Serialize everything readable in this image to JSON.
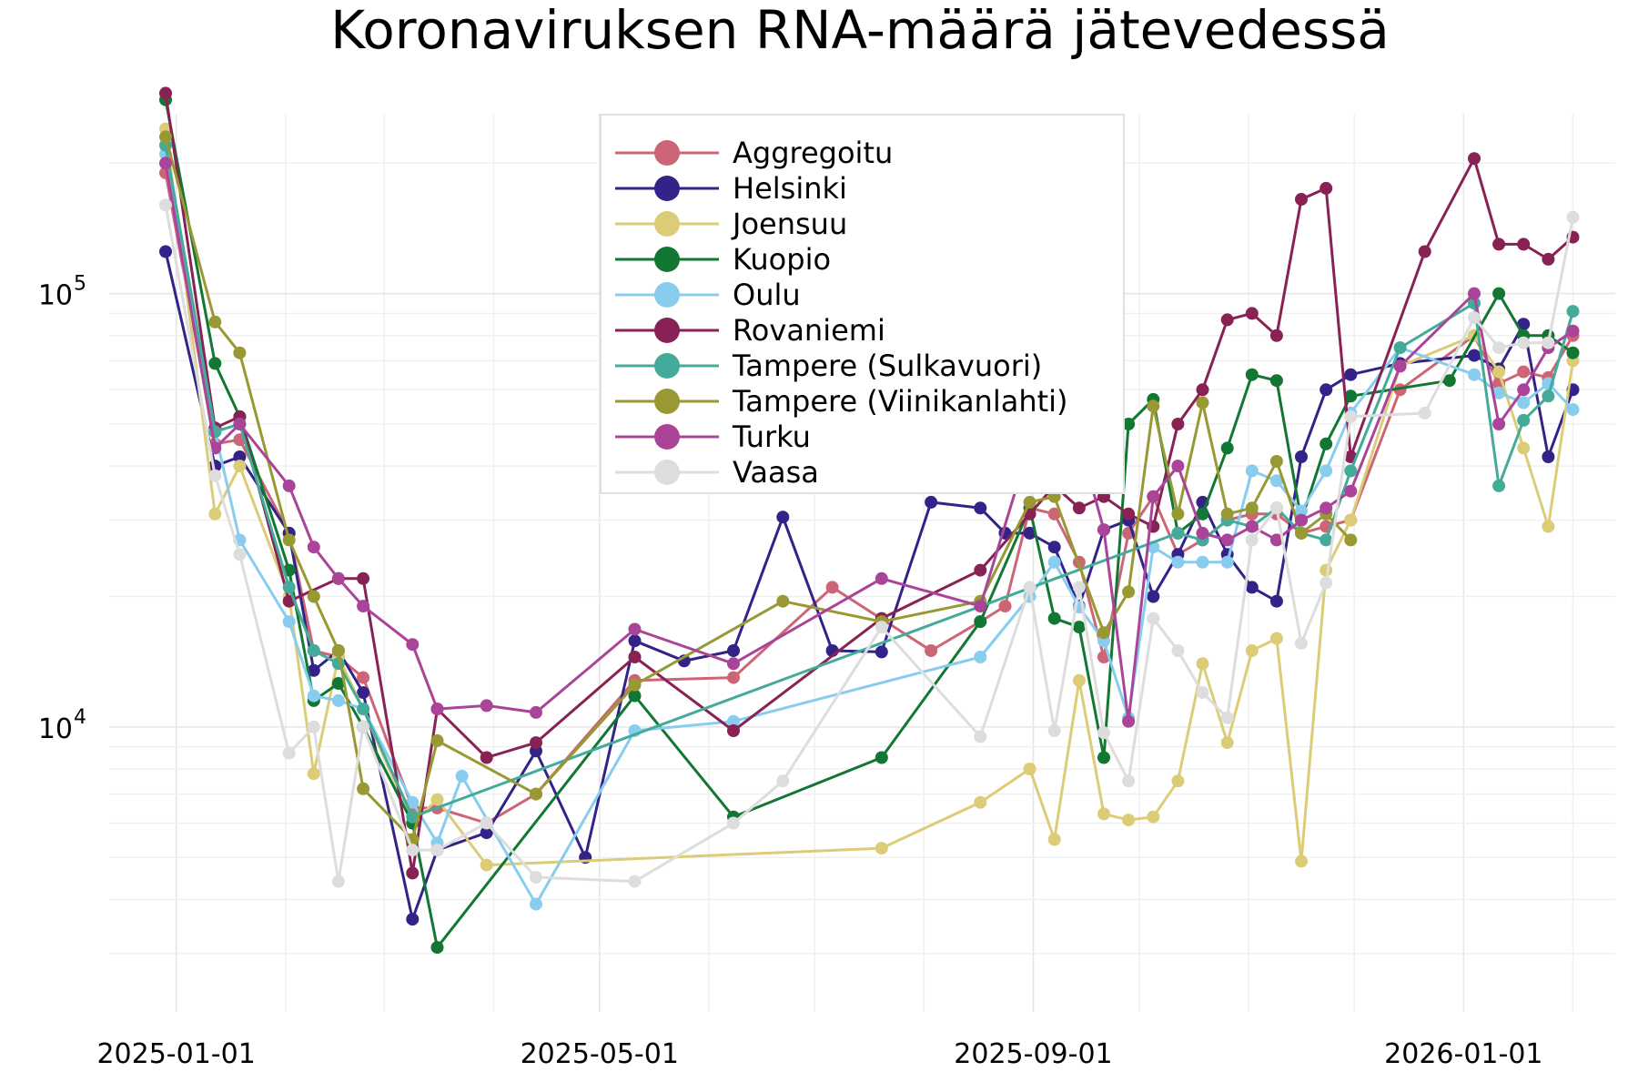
{
  "chart_data": {
    "type": "line",
    "title": "Koronaviruksen RNA-määrä jätevedessä",
    "xlabel": "",
    "ylabel": "",
    "y_scale": "log",
    "xlim": [
      "2024-12-13",
      "2026-02-13"
    ],
    "ylim": [
      2200,
      260000
    ],
    "grid": true,
    "legend_position": "top-center",
    "x_ticks": [
      {
        "date": "2025-01-01",
        "label": "2025-01-01"
      },
      {
        "date": "2025-05-01",
        "label": "2025-05-01"
      },
      {
        "date": "2025-09-01",
        "label": "2025-09-01"
      },
      {
        "date": "2026-01-01",
        "label": "2026-01-01"
      }
    ],
    "y_ticks": [
      {
        "value": 10000,
        "base": "10",
        "exp": "4"
      },
      {
        "value": 100000,
        "base": "10",
        "exp": "5"
      }
    ],
    "series": [
      {
        "name": "Aggregoitu",
        "color": "#cc6677",
        "x": [
          "2024-12-29",
          "2025-01-12",
          "2025-01-19",
          "2025-02-02",
          "2025-02-09",
          "2025-02-16",
          "2025-02-23",
          "2025-03-09",
          "2025-03-16",
          "2025-03-30",
          "2025-04-13",
          "2025-05-11",
          "2025-06-08",
          "2025-07-06",
          "2025-08-03",
          "2025-08-17",
          "2025-08-24",
          "2025-08-31",
          "2025-09-07",
          "2025-09-14",
          "2025-09-21",
          "2025-09-28",
          "2025-10-05",
          "2025-10-12",
          "2025-10-19",
          "2025-10-26",
          "2025-11-02",
          "2025-11-09",
          "2025-11-16",
          "2025-11-23",
          "2025-11-30",
          "2025-12-14",
          "2026-01-04",
          "2026-01-11",
          "2026-01-18",
          "2026-01-25",
          "2026-02-01"
        ],
        "y": [
          190000,
          45000,
          46000,
          28000,
          15000,
          14500,
          13000,
          6500,
          6500,
          6000,
          7000,
          12800,
          13000,
          21000,
          15000,
          17500,
          19000,
          32000,
          31000,
          24000,
          14500,
          28000,
          34000,
          25000,
          27000,
          30000,
          31000,
          31000,
          28000,
          29000,
          30000,
          60000,
          80000,
          62000,
          66000,
          64000,
          80000
        ]
      },
      {
        "name": "Helsinki",
        "color": "#332288",
        "x": [
          "2024-12-29",
          "2025-01-12",
          "2025-01-19",
          "2025-02-02",
          "2025-02-09",
          "2025-02-16",
          "2025-02-23",
          "2025-03-09",
          "2025-03-16",
          "2025-03-30",
          "2025-04-13",
          "2025-04-27",
          "2025-05-11",
          "2025-05-25",
          "2025-06-08",
          "2025-06-22",
          "2025-07-06",
          "2025-07-20",
          "2025-08-03",
          "2025-08-17",
          "2025-08-24",
          "2025-08-31",
          "2025-09-07",
          "2025-09-14",
          "2025-09-21",
          "2025-09-28",
          "2025-10-05",
          "2025-10-12",
          "2025-10-19",
          "2025-10-26",
          "2025-11-02",
          "2025-11-09",
          "2025-11-16",
          "2025-11-23",
          "2025-11-30",
          "2025-12-14",
          "2026-01-04",
          "2026-01-11",
          "2026-01-18",
          "2026-01-25",
          "2026-02-01"
        ],
        "y": [
          125000,
          40000,
          42000,
          28000,
          13500,
          15000,
          12000,
          3600,
          5200,
          5700,
          8800,
          5000,
          15800,
          14200,
          15000,
          30500,
          15000,
          14900,
          33000,
          32000,
          28000,
          28000,
          26000,
          19000,
          28500,
          30000,
          20000,
          25000,
          33000,
          25000,
          21000,
          19500,
          42000,
          60000,
          65000,
          69000,
          72000,
          67000,
          85000,
          42000,
          60000
        ]
      },
      {
        "name": "Joensuu",
        "color": "#ddcc77",
        "x": [
          "2024-12-29",
          "2025-01-12",
          "2025-01-19",
          "2025-02-02",
          "2025-02-09",
          "2025-02-16",
          "2025-02-23",
          "2025-03-09",
          "2025-03-16",
          "2025-03-30",
          "2025-07-20",
          "2025-08-17",
          "2025-08-31",
          "2025-09-07",
          "2025-09-14",
          "2025-09-21",
          "2025-09-28",
          "2025-10-05",
          "2025-10-12",
          "2025-10-19",
          "2025-10-26",
          "2025-11-02",
          "2025-11-09",
          "2025-11-16",
          "2025-11-23",
          "2025-11-30",
          "2025-12-14",
          "2026-01-04",
          "2026-01-11",
          "2026-01-18",
          "2026-01-25",
          "2026-02-01"
        ],
        "y": [
          240000,
          31000,
          40000,
          20000,
          7800,
          14500,
          11000,
          6000,
          6800,
          4800,
          5250,
          6700,
          8000,
          5500,
          12800,
          6300,
          6100,
          6200,
          7500,
          14000,
          9200,
          15000,
          16000,
          4900,
          23000,
          30000,
          68000,
          80000,
          66000,
          44000,
          29000,
          70000
        ]
      },
      {
        "name": "Kuopio",
        "color": "#117733",
        "x": [
          "2024-12-29",
          "2025-01-12",
          "2025-01-19",
          "2025-02-02",
          "2025-02-09",
          "2025-02-16",
          "2025-02-23",
          "2025-03-09",
          "2025-03-16",
          "2025-05-11",
          "2025-06-08",
          "2025-07-20",
          "2025-08-17",
          "2025-08-31",
          "2025-09-07",
          "2025-09-14",
          "2025-09-21",
          "2025-09-28",
          "2025-10-05",
          "2025-10-12",
          "2025-10-19",
          "2025-10-26",
          "2025-11-02",
          "2025-11-09",
          "2025-11-16",
          "2025-11-23",
          "2025-11-30",
          "2025-12-28",
          "2026-01-11",
          "2026-01-18",
          "2026-01-25",
          "2026-02-01"
        ],
        "y": [
          280000,
          69000,
          52000,
          23000,
          11500,
          12600,
          10000,
          6000,
          3100,
          11800,
          6200,
          8500,
          17500,
          32000,
          17800,
          17000,
          8500,
          50000,
          57000,
          28000,
          31000,
          44000,
          65000,
          63000,
          30000,
          45000,
          58000,
          63000,
          100000,
          80000,
          80000,
          73000
        ]
      },
      {
        "name": "Oulu",
        "color": "#88ccee",
        "x": [
          "2024-12-29",
          "2025-01-12",
          "2025-01-19",
          "2025-02-02",
          "2025-02-09",
          "2025-02-16",
          "2025-02-23",
          "2025-03-09",
          "2025-03-16",
          "2025-03-23",
          "2025-04-13",
          "2025-05-11",
          "2025-06-08",
          "2025-08-17",
          "2025-08-31",
          "2025-09-07",
          "2025-09-14",
          "2025-09-21",
          "2025-09-28",
          "2025-10-05",
          "2025-10-12",
          "2025-10-19",
          "2025-10-26",
          "2025-11-02",
          "2025-11-09",
          "2025-11-16",
          "2025-11-23",
          "2025-11-30",
          "2025-12-14",
          "2026-01-04",
          "2026-01-11",
          "2026-01-18",
          "2026-01-25",
          "2026-02-01"
        ],
        "y": [
          210000,
          48000,
          27000,
          17500,
          11800,
          11500,
          11000,
          6700,
          5400,
          7700,
          3900,
          9800,
          10300,
          14500,
          20000,
          24000,
          18900,
          15800,
          10500,
          26000,
          24000,
          24000,
          24000,
          39000,
          37000,
          31500,
          39000,
          53000,
          75000,
          65000,
          59000,
          56000,
          62000,
          54000
        ]
      },
      {
        "name": "Rovaniemi",
        "color": "#882255",
        "x": [
          "2024-12-29",
          "2025-01-12",
          "2025-01-19",
          "2025-02-02",
          "2025-02-16",
          "2025-02-23",
          "2025-03-09",
          "2025-03-16",
          "2025-03-30",
          "2025-04-13",
          "2025-05-11",
          "2025-06-08",
          "2025-07-20",
          "2025-08-17",
          "2025-08-31",
          "2025-09-07",
          "2025-09-14",
          "2025-09-21",
          "2025-09-28",
          "2025-10-05",
          "2025-10-12",
          "2025-10-19",
          "2025-10-26",
          "2025-11-02",
          "2025-11-09",
          "2025-11-16",
          "2025-11-23",
          "2025-11-30",
          "2025-12-21",
          "2026-01-04",
          "2026-01-11",
          "2026-01-18",
          "2026-01-25",
          "2026-02-01"
        ],
        "y": [
          290000,
          49000,
          52000,
          19500,
          22000,
          22000,
          4600,
          11000,
          8500,
          9200,
          14500,
          9800,
          17800,
          23000,
          31000,
          36000,
          32000,
          34000,
          31000,
          29000,
          50000,
          60000,
          87000,
          90000,
          80000,
          165000,
          175000,
          42000,
          125000,
          205000,
          130000,
          130000,
          120000,
          135000
        ]
      },
      {
        "name": "Tampere (Sulkavuori)",
        "color": "#44aa99",
        "x": [
          "2024-12-29",
          "2025-01-12",
          "2025-01-19",
          "2025-02-02",
          "2025-02-09",
          "2025-02-16",
          "2025-02-23",
          "2025-03-09",
          "2025-10-12",
          "2025-10-19",
          "2025-10-26",
          "2025-11-02",
          "2025-11-09",
          "2025-11-16",
          "2025-11-23",
          "2025-11-30",
          "2025-12-14",
          "2026-01-04",
          "2026-01-11",
          "2026-01-18",
          "2026-01-25",
          "2026-02-01"
        ],
        "y": [
          220000,
          48000,
          50000,
          21000,
          15000,
          14000,
          11000,
          6200,
          28000,
          27000,
          30000,
          29000,
          32000,
          28000,
          27000,
          39000,
          75000,
          95000,
          36000,
          51000,
          58000,
          91000
        ]
      },
      {
        "name": "Tampere (Viinikanlahti)",
        "color": "#999933",
        "x": [
          "2024-12-29",
          "2025-01-12",
          "2025-01-19",
          "2025-02-02",
          "2025-02-09",
          "2025-02-16",
          "2025-02-23",
          "2025-03-09",
          "2025-03-16",
          "2025-04-13",
          "2025-05-11",
          "2025-06-22",
          "2025-07-20",
          "2025-08-17",
          "2025-08-31",
          "2025-09-07",
          "2025-09-21",
          "2025-09-28",
          "2025-10-05",
          "2025-10-12",
          "2025-10-19",
          "2025-10-26",
          "2025-11-02",
          "2025-11-09",
          "2025-11-16",
          "2025-11-23",
          "2025-11-30"
        ],
        "y": [
          230000,
          86000,
          73000,
          27000,
          20000,
          15000,
          7200,
          5500,
          9300,
          7000,
          12500,
          19500,
          17500,
          19500,
          33000,
          34000,
          16500,
          20500,
          55000,
          31000,
          56000,
          31000,
          32000,
          41000,
          28000,
          31000,
          27000
        ]
      },
      {
        "name": "Turku",
        "color": "#aa4499",
        "x": [
          "2024-12-29",
          "2025-01-12",
          "2025-01-19",
          "2025-02-02",
          "2025-02-09",
          "2025-02-16",
          "2025-02-23",
          "2025-03-09",
          "2025-03-16",
          "2025-03-30",
          "2025-04-13",
          "2025-05-11",
          "2025-06-08",
          "2025-07-20",
          "2025-08-17",
          "2025-08-31",
          "2025-09-07",
          "2025-09-14",
          "2025-09-21",
          "2025-09-28",
          "2025-10-05",
          "2025-10-12",
          "2025-10-19",
          "2025-10-26",
          "2025-11-02",
          "2025-11-09",
          "2025-11-16",
          "2025-11-23",
          "2025-11-30",
          "2025-12-14",
          "2026-01-04",
          "2026-01-11",
          "2026-01-18",
          "2026-01-25",
          "2026-02-01"
        ],
        "y": [
          200000,
          44000,
          50000,
          36000,
          26000,
          22000,
          19000,
          15500,
          11000,
          11200,
          10800,
          16800,
          14000,
          22000,
          19000,
          45000,
          44000,
          46000,
          28500,
          10300,
          34000,
          40000,
          28000,
          27000,
          29000,
          27000,
          30000,
          32000,
          35000,
          68000,
          100000,
          50000,
          60000,
          75000,
          82000
        ]
      },
      {
        "name": "Vaasa",
        "color": "#dddddd",
        "x": [
          "2024-12-29",
          "2025-01-12",
          "2025-01-19",
          "2025-02-02",
          "2025-02-09",
          "2025-02-16",
          "2025-02-23",
          "2025-03-09",
          "2025-03-16",
          "2025-03-30",
          "2025-04-13",
          "2025-05-11",
          "2025-06-08",
          "2025-06-22",
          "2025-07-20",
          "2025-08-17",
          "2025-08-31",
          "2025-09-07",
          "2025-09-14",
          "2025-09-21",
          "2025-09-28",
          "2025-10-05",
          "2025-10-12",
          "2025-10-19",
          "2025-10-26",
          "2025-11-02",
          "2025-11-09",
          "2025-11-16",
          "2025-11-23",
          "2025-11-30",
          "2025-12-21",
          "2026-01-04",
          "2026-01-11",
          "2026-01-18",
          "2026-01-25",
          "2026-02-01"
        ],
        "y": [
          160000,
          38000,
          25000,
          8700,
          10000,
          4400,
          10000,
          5200,
          5200,
          6000,
          4500,
          4400,
          6000,
          7500,
          17000,
          9500,
          21000,
          9800,
          21000,
          9700,
          7500,
          17800,
          15000,
          12000,
          10500,
          27000,
          32000,
          15600,
          21500,
          52000,
          53000,
          88000,
          75000,
          77000,
          77000,
          150000
        ]
      }
    ]
  }
}
